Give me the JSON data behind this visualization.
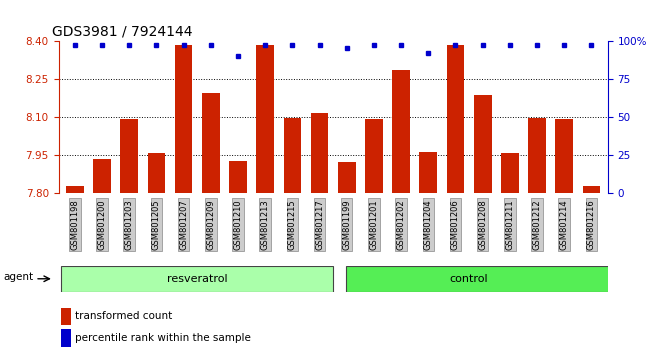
{
  "title": "GDS3981 / 7924144",
  "categories": [
    "GSM801198",
    "GSM801200",
    "GSM801203",
    "GSM801205",
    "GSM801207",
    "GSM801209",
    "GSM801210",
    "GSM801213",
    "GSM801215",
    "GSM801217",
    "GSM801199",
    "GSM801201",
    "GSM801202",
    "GSM801204",
    "GSM801206",
    "GSM801208",
    "GSM801211",
    "GSM801212",
    "GSM801214",
    "GSM801216"
  ],
  "red_values": [
    7.826,
    7.932,
    8.093,
    7.957,
    8.385,
    8.195,
    7.927,
    8.385,
    8.095,
    8.115,
    7.922,
    8.093,
    8.285,
    7.96,
    8.385,
    8.185,
    7.957,
    8.095,
    8.093,
    7.826
  ],
  "blue_values": [
    97,
    97,
    97,
    97,
    97,
    97,
    90,
    97,
    97,
    97,
    95,
    97,
    97,
    92,
    97,
    97,
    97,
    97,
    97,
    97
  ],
  "group1_label": "resveratrol",
  "group2_label": "control",
  "group1_count": 10,
  "group2_count": 10,
  "ylim_left": [
    7.8,
    8.4
  ],
  "ylim_right": [
    0,
    100
  ],
  "yticks_left": [
    7.8,
    7.95,
    8.1,
    8.25,
    8.4
  ],
  "yticks_right": [
    0,
    25,
    50,
    75,
    100
  ],
  "bar_color": "#cc2200",
  "dot_color": "#0000cc",
  "grid_color": "#000000",
  "group1_bg": "#aaffaa",
  "group2_bg": "#55ee55",
  "agent_label": "agent",
  "legend_red": "transformed count",
  "legend_blue": "percentile rank within the sample",
  "title_fontsize": 10,
  "axis_fontsize": 7.5,
  "label_fontsize": 8
}
